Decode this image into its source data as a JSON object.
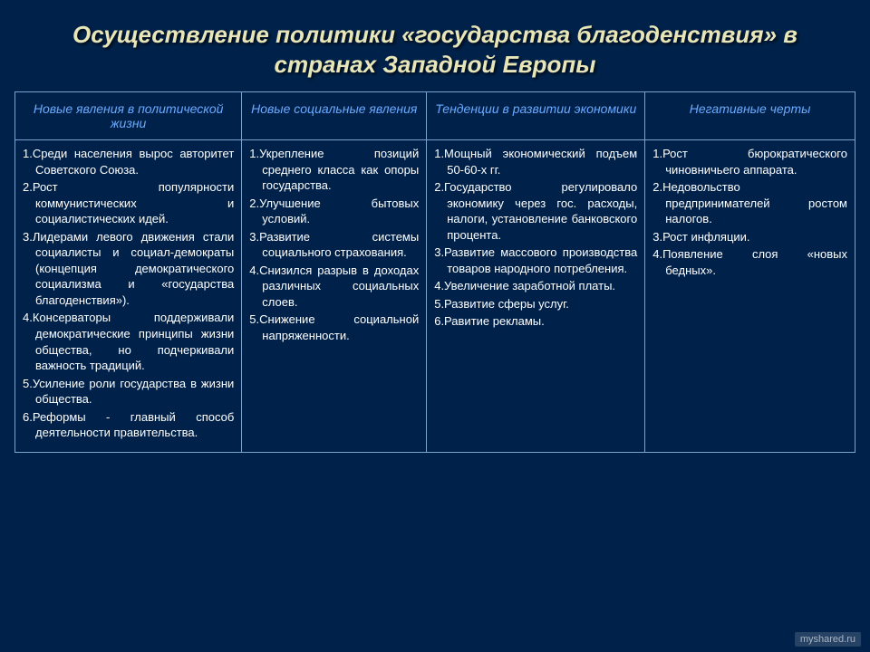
{
  "title": "Осуществление политики «государства благоденствия» в странах Западной Европы",
  "headers": {
    "c1": "Новые явления в политической жизни",
    "c2": "Новые социальные явления",
    "c3": "Тенденции в развитии экономики",
    "c4": "Негативные черты"
  },
  "cells": {
    "c1": [
      "1.Среди населения вырос авторитет Советского Союза.",
      "2.Рост популярности коммунистических и социалистических идей.",
      "3.Лидерами левого движения стали социалисты и социал-демократы (концепция демократического социализма и «государства благоденствия»).",
      "4.Консерваторы поддерживали демократические принципы жизни общества, но подчеркивали важность традиций.",
      "5.Усиление роли государства в жизни общества.",
      "6.Реформы - главный способ деятельности правительства."
    ],
    "c2": [
      "1.Укрепление позиций среднего класса как опоры государства.",
      "2.Улучшение бытовых условий.",
      "3.Развитие системы социального страхования.",
      "4.Снизился разрыв в доходах различных социальных слоев.",
      "5.Снижение социальной напряженности."
    ],
    "c3": [
      "1.Мощный экономический подъем 50-60-х гг.",
      "2.Государство регулировало экономику через гос. расходы, налоги, установление банковского процента.",
      "3.Развитие массового производства товаров народного потребления.",
      "4.Увеличение заработной платы.",
      "5.Развитие сферы услуг.",
      "6.Равитие рекламы."
    ],
    "c4": [
      "1.Рост бюрократического чиновничьего аппарата.",
      "2.Недовольство предпринимателей ростом налогов.",
      "3.Рост инфляции.",
      "4.Появление слоя «новых бедных»."
    ]
  },
  "watermark": "myshared.ru",
  "colors": {
    "background": "#00224a",
    "title": "#e8e6b8",
    "header_text": "#6aa9ff",
    "cell_text": "#ffffff",
    "border": "#7aa3d0"
  },
  "table": {
    "col_widths_pct": [
      27,
      22,
      26,
      25
    ],
    "font_size_body": 13,
    "font_size_header": 14,
    "font_size_title": 26
  }
}
